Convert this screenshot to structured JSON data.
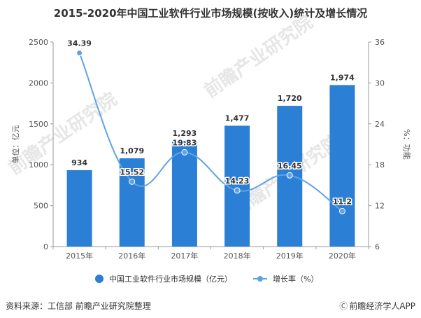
{
  "header": {
    "title": "2015-2020年中国工业软件行业市场规模(按收入)统计及增长情况"
  },
  "chart_data": {
    "type": "bar",
    "title": "2015-2020年中国工业软件行业市场规模(按收入)统计及增长情况",
    "categories": [
      "2015年",
      "2016年",
      "2017年",
      "2018年",
      "2019年",
      "2020年"
    ],
    "series": [
      {
        "name": "中国工业软件行业市场规模（亿元）",
        "type": "bar",
        "axis": "left",
        "values": [
          934,
          1079,
          1293,
          1477,
          1720,
          1974
        ],
        "labels": [
          "934",
          "1,079",
          "1,293",
          "1,477",
          "1,720",
          "1,974"
        ],
        "color": "#2b7fd4"
      },
      {
        "name": "增长率（%）",
        "type": "line",
        "axis": "right",
        "values": [
          34.39,
          15.52,
          19.83,
          14.23,
          16.45,
          11.2
        ],
        "labels": [
          "34.39",
          "15.52",
          "19.83",
          "14.23",
          "16.45",
          "11.2"
        ],
        "color": "#5fa3e6"
      }
    ],
    "ylabel": "单位：亿元",
    "y2label": "%：功能",
    "ylim": [
      0,
      2500
    ],
    "yticks": [
      "0",
      "500",
      "1000",
      "1500",
      "2000",
      "2500"
    ],
    "y2lim": [
      6,
      36
    ],
    "y2ticks": [
      "6",
      "12",
      "18",
      "24",
      "30",
      "36"
    ],
    "grid": false,
    "legend": "bottom"
  },
  "footer": {
    "source": "资料来源：工信部 前瞻产业研究院整理",
    "brand": "前瞻经济学人APP",
    "brand_icon": "copyright-icon"
  },
  "watermark": {
    "text": "前瞻产业研究院"
  }
}
